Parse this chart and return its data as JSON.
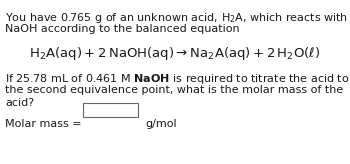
{
  "background_color": "#ffffff",
  "text_color": "#1a1a1a",
  "line1a": "You have 0.765 g of an unknown acid, ",
  "line1b": "H₂A",
  "line1c": ", which reacts with",
  "line2": "NaOH according to the balanced equation",
  "equation": "H₂A(aq) + 2 NaOH(aq) → Na₂A(aq) + 2 H₂O(ℓ)",
  "line3a": "If 25.78 mL of 0.461 M ",
  "line3b": "NaOH",
  "line3c": " is required to titrate the acid to",
  "line4": "the second equivalence point, what is the molar mass of the",
  "line5": "acid?",
  "line6_left": "Molar mass = ",
  "line6_right": "g/mol",
  "body_fontsize": 8.0,
  "eq_fontsize": 9.0,
  "naoh_fontsize": 9.5
}
